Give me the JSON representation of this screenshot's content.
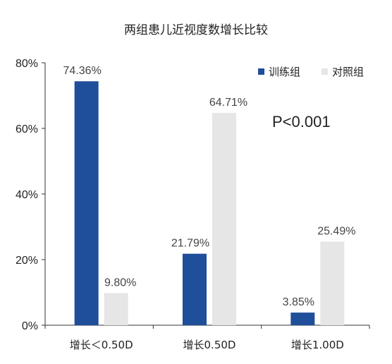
{
  "chart_data": {
    "type": "bar",
    "title": "两组患儿近视度数增长比较",
    "categories": [
      "增长＜0.50D",
      "增长0.50D",
      "增长1.00D"
    ],
    "series": [
      {
        "name": "训练组",
        "color": "#1f4e9a",
        "values": [
          74.36,
          21.79,
          3.85
        ],
        "labels": [
          "74.36%",
          "21.79%",
          "3.85%"
        ]
      },
      {
        "name": "对照组",
        "color": "#e6e6e6",
        "values": [
          9.8,
          64.71,
          25.49
        ],
        "labels": [
          "9.80%",
          "64.71%",
          "25.49%"
        ]
      }
    ],
    "ylim": [
      0,
      80
    ],
    "yticks": [
      "0%",
      "20%",
      "40%",
      "60%",
      "80%"
    ],
    "xlabel": "",
    "ylabel": "",
    "grid": false,
    "legend_position": "top-right",
    "annotation": "P<0.001"
  }
}
